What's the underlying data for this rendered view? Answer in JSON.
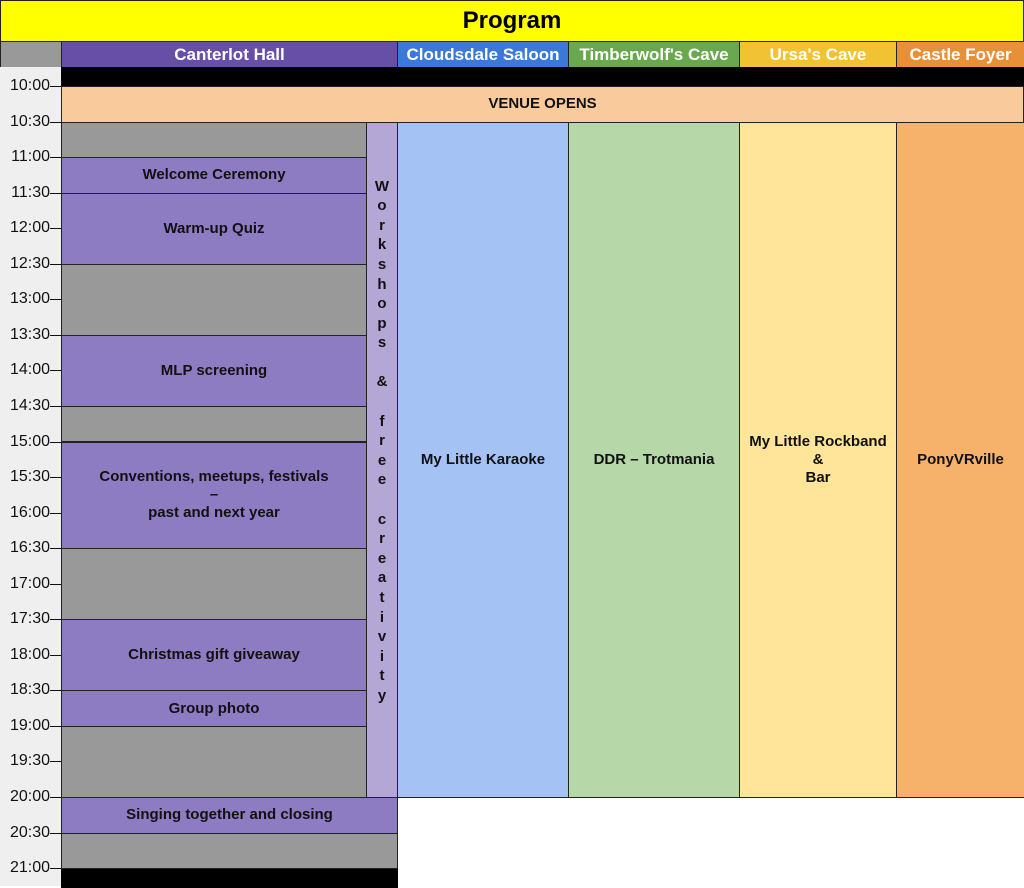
{
  "title": "Program",
  "colors": {
    "title_bg": "#ffff00",
    "time_header_bg": "#999999",
    "break_gray": "#999999",
    "venue_opens": "#f9cb9c",
    "event_purple": "#8e7cc3",
    "workshops_purple": "#b4a7d6",
    "black_bar": "#000000"
  },
  "venues": [
    {
      "name": "Canterlot Hall",
      "header_color": "#674ea7",
      "body_color": "#8e7cc3"
    },
    {
      "name": "Cloudsdale Saloon",
      "header_color": "#3c78d8",
      "body_color": "#a4c2f4"
    },
    {
      "name": "Timberwolf's Cave",
      "header_color": "#6aa84f",
      "body_color": "#b6d7a8"
    },
    {
      "name": "Ursa's Cave",
      "header_color": "#f1c232",
      "body_color": "#ffe599"
    },
    {
      "name": "Castle Foyer",
      "header_color": "#e69138",
      "body_color": "#f6b26b"
    }
  ],
  "times": [
    "10:00",
    "10:30",
    "11:00",
    "11:30",
    "12:00",
    "12:30",
    "13:00",
    "13:30",
    "14:00",
    "14:30",
    "15:00",
    "15:30",
    "16:00",
    "16:30",
    "17:00",
    "17:30",
    "18:00",
    "18:30",
    "19:00",
    "19:30",
    "20:00",
    "20:30",
    "21:00"
  ],
  "venue_opens": {
    "label": "VENUE OPENS",
    "start": "10:00",
    "end": "10:30"
  },
  "canterlot_events": [
    {
      "label": "",
      "start": "10:30",
      "end": "11:00",
      "type": "break"
    },
    {
      "label": "Welcome Ceremony",
      "start": "11:00",
      "end": "11:30",
      "type": "event"
    },
    {
      "label": "Warm-up Quiz",
      "start": "11:30",
      "end": "12:30",
      "type": "event"
    },
    {
      "label": "",
      "start": "12:30",
      "end": "13:30",
      "type": "break"
    },
    {
      "label": "MLP screening",
      "start": "13:30",
      "end": "14:30",
      "type": "event"
    },
    {
      "label": "",
      "start": "14:30",
      "end": "15:00",
      "type": "break"
    },
    {
      "label": "Conventions, meetups, festivals\n–\npast and next year",
      "start": "15:00",
      "end": "16:30",
      "type": "event"
    },
    {
      "label": "",
      "start": "16:30",
      "end": "17:30",
      "type": "break"
    },
    {
      "label": "Christmas gift giveaway",
      "start": "17:30",
      "end": "18:30",
      "type": "event"
    },
    {
      "label": "Group photo",
      "start": "18:30",
      "end": "19:00",
      "type": "event"
    },
    {
      "label": "",
      "start": "19:00",
      "end": "20:00",
      "type": "break"
    }
  ],
  "workshops": {
    "label": "Workshops & free creativity",
    "start": "10:30",
    "end": "20:00"
  },
  "closing_events": [
    {
      "label": "Singing together and closing",
      "start": "20:00",
      "end": "20:30",
      "type": "event"
    },
    {
      "label": "",
      "start": "20:30",
      "end": "21:00",
      "type": "break"
    }
  ],
  "venue_events": [
    {
      "label": "My Little Karaoke",
      "start": "10:30",
      "end": "20:00"
    },
    {
      "label": "DDR – Trotmania",
      "start": "10:30",
      "end": "20:00"
    },
    {
      "label": "My Little Rockband\n&\nBar",
      "start": "10:30",
      "end": "20:00"
    },
    {
      "label": "PonyVRville",
      "start": "10:30",
      "end": "20:00"
    }
  ]
}
